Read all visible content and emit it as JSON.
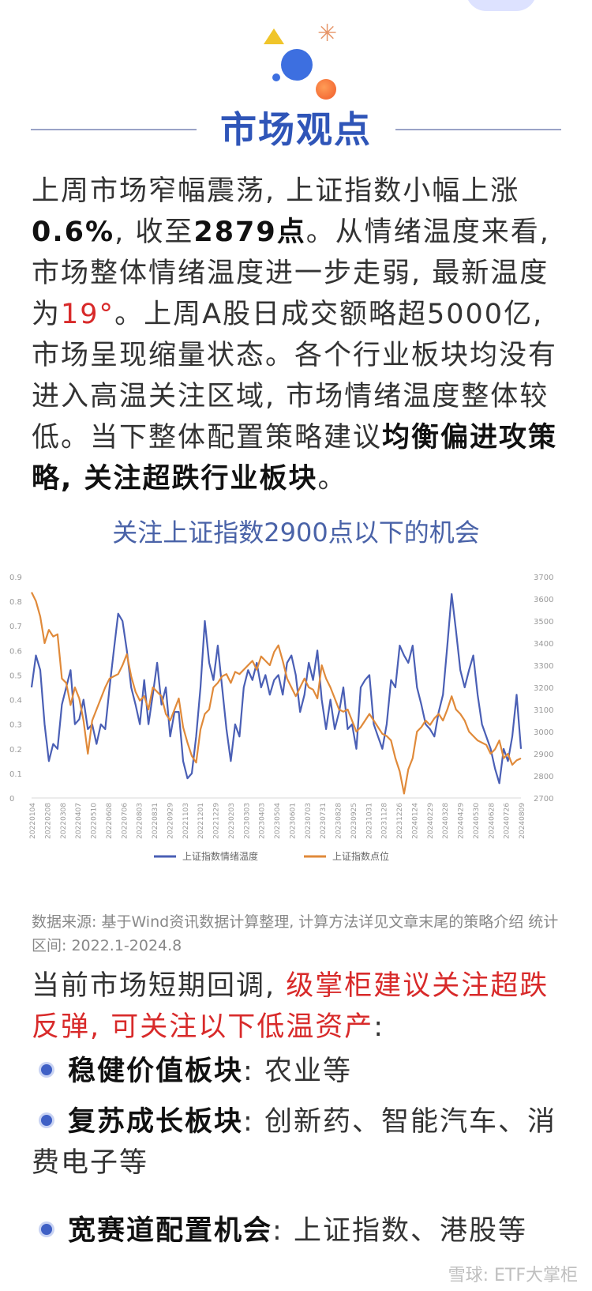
{
  "decor": {
    "accent_blue": "#3d6fe0",
    "accent_yellow": "#f0c52a",
    "accent_orange": "#f05a2a",
    "star_glyph": "✳"
  },
  "header": {
    "title": "市场观点"
  },
  "intro": {
    "p1": "上周市场窄幅震荡, 上证指数小幅上涨",
    "p2": "0.6%",
    "p3": ", 收至",
    "p4": "2879点",
    "p5": "。从情绪温度来看, 市场整体情绪温度进一步走弱, 最新温度为",
    "temperature": "19°",
    "p6": "。上周A股日成交额略超5000亿, 市场呈现缩量状态。各个行业板块均没有进入高温关注区域, 市场情绪温度整体较低。当下整体配置策略建议",
    "strategy": "均衡偏进攻策略, 关注超跌行业板块",
    "p7": "。"
  },
  "chart_title": "关注上证指数2900点以下的机会",
  "chart_data": {
    "type": "line",
    "xlabel": "",
    "ylabel": "",
    "left_axis": {
      "min": 0,
      "max": 0.9,
      "ticks": [
        "0",
        "0.1",
        "0.2",
        "0.3",
        "0.4",
        "0.5",
        "0.6",
        "0.7",
        "0.8",
        "0.9"
      ]
    },
    "right_axis": {
      "min": 2700,
      "max": 3700,
      "ticks": [
        "2700",
        "2800",
        "2900",
        "3000",
        "3100",
        "3200",
        "3300",
        "3400",
        "3500",
        "3600",
        "3700"
      ]
    },
    "x_ticks": [
      "20220104",
      "20220208",
      "20220308",
      "20220407",
      "20220510",
      "20220608",
      "20220706",
      "20220803",
      "20220831",
      "20220929",
      "20221103",
      "20221201",
      "20221229",
      "20230203",
      "20230303",
      "20230403",
      "20230504",
      "20230601",
      "20230703",
      "20230731",
      "20230828",
      "20230925",
      "20231031",
      "20231128",
      "20231226",
      "20240124",
      "20240229",
      "20240328",
      "20240429",
      "20240530",
      "20240628",
      "20240726",
      "20240809"
    ],
    "legend_position": "bottom",
    "grid": false,
    "series": [
      {
        "name": "上证指数情绪温度",
        "color": "#4a5fb5",
        "axis": "left",
        "values": [
          0.45,
          0.58,
          0.52,
          0.3,
          0.15,
          0.22,
          0.2,
          0.38,
          0.45,
          0.52,
          0.3,
          0.32,
          0.4,
          0.28,
          0.3,
          0.22,
          0.3,
          0.28,
          0.45,
          0.6,
          0.75,
          0.72,
          0.6,
          0.45,
          0.38,
          0.3,
          0.48,
          0.3,
          0.42,
          0.55,
          0.38,
          0.45,
          0.25,
          0.35,
          0.35,
          0.15,
          0.08,
          0.1,
          0.25,
          0.45,
          0.72,
          0.55,
          0.48,
          0.62,
          0.45,
          0.28,
          0.15,
          0.3,
          0.25,
          0.45,
          0.52,
          0.48,
          0.55,
          0.45,
          0.5,
          0.42,
          0.48,
          0.5,
          0.42,
          0.55,
          0.58,
          0.5,
          0.35,
          0.42,
          0.55,
          0.48,
          0.6,
          0.4,
          0.28,
          0.4,
          0.28,
          0.35,
          0.45,
          0.28,
          0.3,
          0.2,
          0.45,
          0.48,
          0.5,
          0.3,
          0.25,
          0.2,
          0.3,
          0.48,
          0.45,
          0.62,
          0.58,
          0.55,
          0.62,
          0.45,
          0.38,
          0.3,
          0.28,
          0.25,
          0.35,
          0.42,
          0.62,
          0.83,
          0.68,
          0.52,
          0.45,
          0.52,
          0.58,
          0.42,
          0.3,
          0.25,
          0.2,
          0.12,
          0.06,
          0.2,
          0.15,
          0.25,
          0.42,
          0.2
        ]
      },
      {
        "name": "上证指数点位",
        "color": "#e08a3a",
        "axis": "right",
        "values": [
          3630,
          3590,
          3520,
          3400,
          3460,
          3430,
          3440,
          3240,
          3220,
          3120,
          3200,
          3150,
          3050,
          2900,
          3050,
          3100,
          3150,
          3200,
          3240,
          3250,
          3260,
          3300,
          3350,
          3250,
          3180,
          3140,
          3160,
          3100,
          3200,
          3180,
          3160,
          3080,
          3050,
          3100,
          3150,
          3020,
          2950,
          2890,
          2860,
          3010,
          3080,
          3100,
          3200,
          3220,
          3250,
          3260,
          3220,
          3270,
          3260,
          3280,
          3300,
          3320,
          3280,
          3340,
          3320,
          3300,
          3360,
          3390,
          3320,
          3240,
          3200,
          3160,
          3200,
          3240,
          3200,
          3190,
          3150,
          3300,
          3240,
          3200,
          3150,
          3100,
          3090,
          3100,
          3050,
          3000,
          3020,
          3050,
          3080,
          3050,
          3020,
          2990,
          2980,
          2960,
          2880,
          2820,
          2720,
          2830,
          2880,
          3000,
          3020,
          3050,
          3030,
          3060,
          3080,
          3050,
          3100,
          3160,
          3100,
          3080,
          3050,
          3000,
          2980,
          2960,
          2950,
          2940,
          2900,
          2920,
          2960,
          2880,
          2900,
          2850,
          2870,
          2879
        ]
      }
    ]
  },
  "source_note": "数据来源: 基于Wind资讯数据计算整理, 计算方法详见文章末尾的策略介绍 统计区间: 2022.1-2024.8",
  "recommend": {
    "lead": "当前市场短期回调, ",
    "highlight": "级掌柜建议关注超跌反弹, 可关注以下低温资产",
    "tail": ":"
  },
  "bullets": [
    {
      "label": "稳健价值板块",
      "sep": ": ",
      "text": "农业等"
    },
    {
      "label": "复苏成长板块",
      "sep": ": ",
      "text": "创新药、智能汽车、消费电子等"
    },
    {
      "label": "宽赛道配置机会",
      "sep": ": ",
      "text": "上证指数、港股等"
    }
  ],
  "watermark": "雪球: ETF大掌柜"
}
